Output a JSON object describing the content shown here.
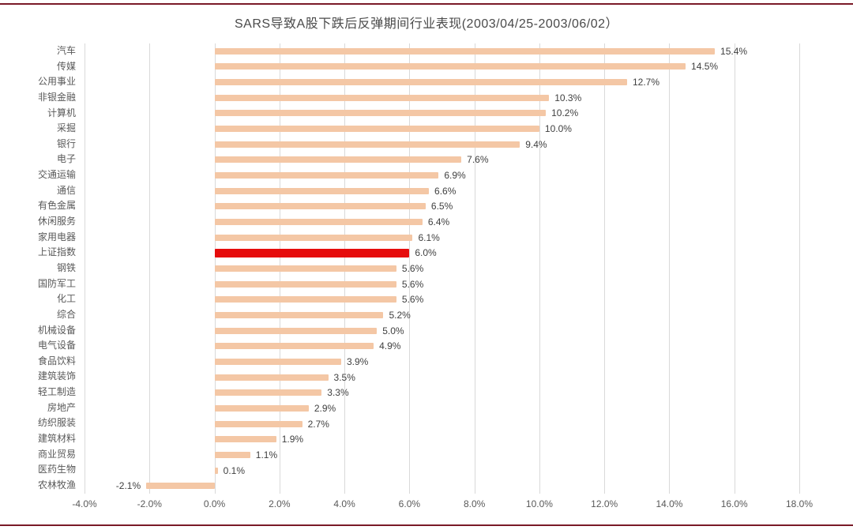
{
  "page": {
    "background": "#ffffff",
    "border_line_color": "#7a1a28"
  },
  "chart_data": {
    "type": "bar",
    "orientation": "horizontal",
    "title": "SARS导致A股下跌后反弹期间行业表现(2003/04/25-2003/06/02）",
    "categories": [
      "汽车",
      "传媒",
      "公用事业",
      "非银金融",
      "计算机",
      "采掘",
      "银行",
      "电子",
      "交通运输",
      "通信",
      "有色金属",
      "休闲服务",
      "家用电器",
      "上证指数",
      "钢铁",
      "国防军工",
      "化工",
      "综合",
      "机械设备",
      "电气设备",
      "食品饮料",
      "建筑装饰",
      "轻工制造",
      "房地产",
      "纺织服装",
      "建筑材料",
      "商业贸易",
      "医药生物",
      "农林牧渔"
    ],
    "values": [
      15.4,
      14.5,
      12.7,
      10.3,
      10.2,
      10.0,
      9.4,
      7.6,
      6.9,
      6.6,
      6.5,
      6.4,
      6.1,
      6.0,
      5.6,
      5.6,
      5.6,
      5.2,
      5.0,
      4.9,
      3.9,
      3.5,
      3.3,
      2.9,
      2.7,
      1.9,
      1.1,
      0.1,
      -2.1
    ],
    "value_labels": [
      "15.4%",
      "14.5%",
      "12.7%",
      "10.3%",
      "10.2%",
      "10.0%",
      "9.4%",
      "7.6%",
      "6.9%",
      "6.6%",
      "6.5%",
      "6.4%",
      "6.1%",
      "6.0%",
      "5.6%",
      "5.6%",
      "5.6%",
      "5.2%",
      "5.0%",
      "4.9%",
      "3.9%",
      "3.5%",
      "3.3%",
      "2.9%",
      "2.7%",
      "1.9%",
      "1.1%",
      "0.1%",
      "-2.1%"
    ],
    "highlight_category": "上证指数",
    "highlight_color": "#e60c0c",
    "bar_color": "#f4c7a5",
    "xlim": [
      -4,
      18
    ],
    "x_tick_values": [
      -4,
      -2,
      0,
      2,
      4,
      6,
      8,
      10,
      12,
      14,
      16,
      18
    ],
    "x_tick_labels": [
      "-4.0%",
      "-2.0%",
      "0.0%",
      "2.0%",
      "4.0%",
      "6.0%",
      "8.0%",
      "10.0%",
      "12.0%",
      "14.0%",
      "16.0%",
      "18.0%"
    ],
    "grid": true,
    "gridline_color": "#d9d9d9",
    "legend": "none",
    "category_label_color": "#595959",
    "value_label_color": "#404040",
    "tick_label_color": "#595959"
  }
}
